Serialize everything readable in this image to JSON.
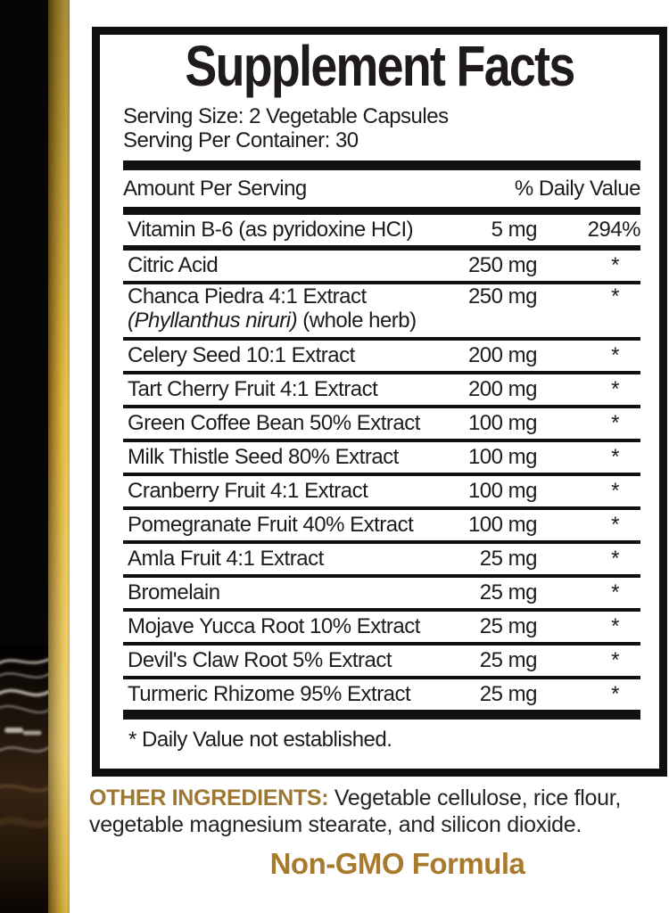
{
  "label": {
    "title": "Supplement Facts",
    "serving_size": "Serving Size: 2 Vegetable Capsules",
    "servings_per_container": "Serving Per Container: 30",
    "column_headers": {
      "amount_per_serving": "Amount Per Serving",
      "daily_value": "% Daily Value"
    },
    "rows": [
      {
        "name": "Vitamin B-6 (as pyridoxine HCI)",
        "amount": "5 mg",
        "dv": "294%"
      },
      {
        "name": "Citric Acid",
        "amount": "250 mg",
        "dv": "*"
      },
      {
        "name": "Chanca Piedra 4:1 Extract",
        "sub_italic": "(Phyllanthus niruri)",
        "sub_plain": " (whole herb)",
        "amount": "250 mg",
        "dv": "*"
      },
      {
        "name": "Celery Seed 10:1 Extract",
        "amount": "200 mg",
        "dv": "*"
      },
      {
        "name": "Tart Cherry Fruit 4:1 Extract",
        "amount": "200 mg",
        "dv": "*"
      },
      {
        "name": "Green Coffee Bean 50% Extract",
        "amount": "100 mg",
        "dv": "*"
      },
      {
        "name": "Milk Thistle Seed 80% Extract",
        "amount": "100 mg",
        "dv": "*"
      },
      {
        "name": "Cranberry Fruit 4:1 Extract",
        "amount": "100 mg",
        "dv": "*"
      },
      {
        "name": "Pomegranate Fruit 40% Extract",
        "amount": "100 mg",
        "dv": "*"
      },
      {
        "name": "Amla Fruit 4:1 Extract",
        "amount": "25 mg",
        "dv": "*"
      },
      {
        "name": "Bromelain",
        "amount": "25 mg",
        "dv": "*"
      },
      {
        "name": "Mojave Yucca Root 10% Extract",
        "amount": "25 mg",
        "dv": "*"
      },
      {
        "name": "Devil's Claw Root 5% Extract",
        "amount": "25 mg",
        "dv": "*"
      },
      {
        "name": "Turmeric Rhizome 95% Extract",
        "amount": "25 mg",
        "dv": "*"
      }
    ],
    "footnote": "* Daily Value not established."
  },
  "bottom": {
    "other_ingredients_label": "OTHER INGREDIENTS:",
    "other_ingredients_text": " Vegetable cellulose, rice flour, vegetable magnesium stearate, and silicon dioxide.",
    "non_gmo": "Non-GMO Formula"
  },
  "colors": {
    "gold_text": "#9e7733",
    "non_gmo_gold": "#a87a2e",
    "rule_black": "#111111",
    "text": "#1f1b1c"
  }
}
